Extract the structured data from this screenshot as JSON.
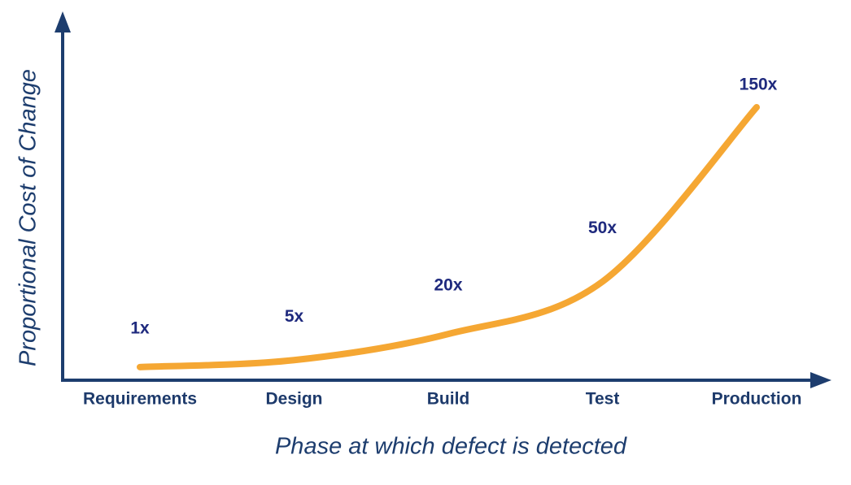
{
  "chart_data": {
    "type": "line",
    "x_label": "Phase at which defect is detected",
    "y_label": "Proportional Cost of Change",
    "categories": [
      "Requirements",
      "Design",
      "Build",
      "Test",
      "Production"
    ],
    "values": [
      1,
      5,
      20,
      50,
      150
    ],
    "value_labels": [
      "1x",
      "5x",
      "20x",
      "50x",
      "150x"
    ],
    "color": "#f5a733"
  }
}
